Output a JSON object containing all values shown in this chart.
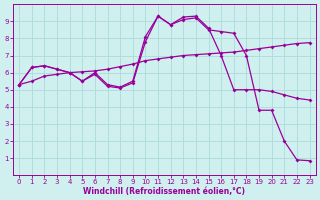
{
  "xlabel": "Windchill (Refroidissement éolien,°C)",
  "bg_color": "#d0f0f0",
  "line_color": "#990099",
  "grid_color": "#b0dede",
  "curve1_x": [
    0,
    1,
    2,
    3,
    4,
    5,
    6,
    7,
    8,
    9,
    10,
    11,
    12,
    13,
    14,
    15,
    16,
    17,
    18,
    19,
    20,
    21,
    22,
    23
  ],
  "curve1_y": [
    5.3,
    6.3,
    6.4,
    6.2,
    6.0,
    5.5,
    6.0,
    5.3,
    5.15,
    5.5,
    8.1,
    9.3,
    8.8,
    9.25,
    9.3,
    8.6,
    7.0,
    5.0,
    5.0,
    5.0,
    4.9,
    4.7,
    4.5,
    4.4
  ],
  "curve2_x": [
    0,
    1,
    2,
    3,
    4,
    5,
    6,
    7,
    8,
    9,
    10,
    11,
    12,
    13,
    14,
    15,
    16,
    17,
    18,
    19,
    20,
    21,
    22,
    23
  ],
  "curve2_y": [
    5.3,
    5.5,
    5.8,
    5.9,
    6.0,
    6.05,
    6.1,
    6.2,
    6.35,
    6.5,
    6.7,
    6.8,
    6.9,
    7.0,
    7.05,
    7.1,
    7.15,
    7.2,
    7.3,
    7.4,
    7.5,
    7.6,
    7.7,
    7.75
  ],
  "curve3_x": [
    0,
    1,
    2,
    3,
    4,
    5,
    6,
    7,
    8,
    9,
    10,
    11,
    12,
    13,
    14,
    15,
    16,
    17,
    18,
    19,
    20,
    21,
    22,
    23
  ],
  "curve3_y": [
    5.3,
    6.3,
    6.4,
    6.2,
    6.0,
    5.5,
    5.9,
    5.2,
    5.1,
    5.4,
    7.8,
    9.3,
    8.8,
    9.1,
    9.2,
    8.5,
    8.4,
    8.3,
    7.0,
    3.8,
    3.8,
    2.0,
    0.9,
    0.85
  ],
  "ylim": [
    0,
    10
  ],
  "xlim": [
    -0.5,
    23.5
  ],
  "yticks": [
    1,
    2,
    3,
    4,
    5,
    6,
    7,
    8,
    9
  ],
  "xticks": [
    0,
    1,
    2,
    3,
    4,
    5,
    6,
    7,
    8,
    9,
    10,
    11,
    12,
    13,
    14,
    15,
    16,
    17,
    18,
    19,
    20,
    21,
    22,
    23
  ],
  "xtick_labels": [
    "0",
    "1",
    "2",
    "3",
    "4",
    "5",
    "6",
    "7",
    "8",
    "9",
    "10",
    "11",
    "12",
    "13",
    "14",
    "15",
    "16",
    "17",
    "18",
    "19",
    "20",
    "21",
    "22",
    "23"
  ],
  "tick_fontsize": 5.0,
  "xlabel_fontsize": 5.5
}
